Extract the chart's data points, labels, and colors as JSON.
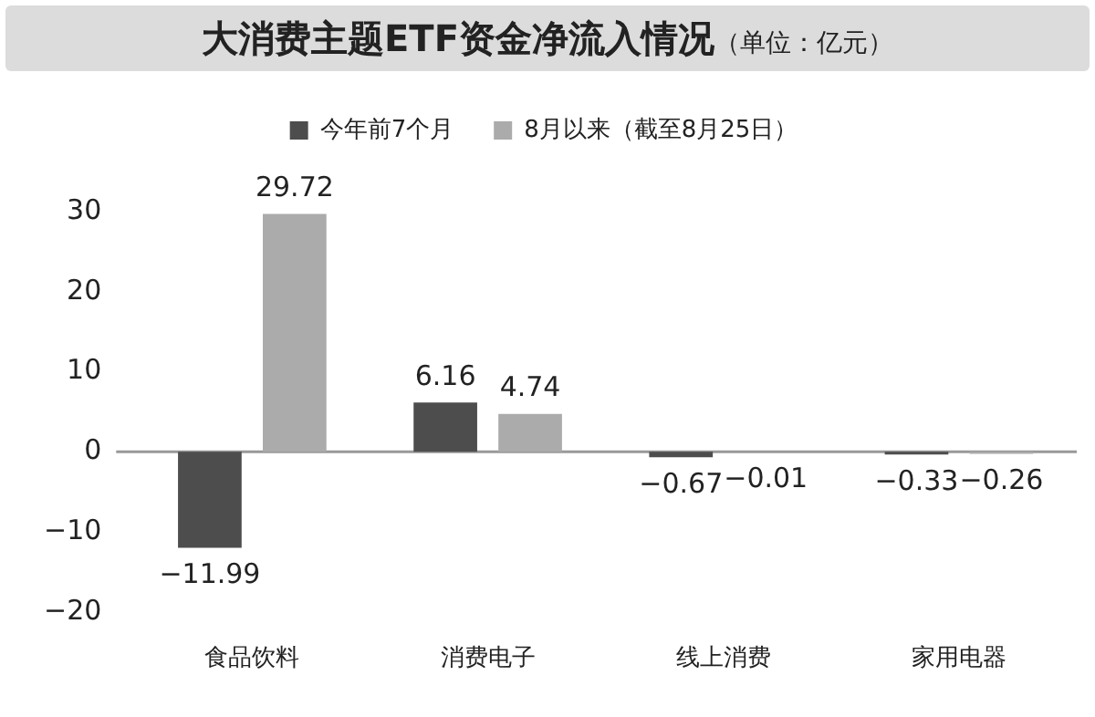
{
  "chart_data": {
    "type": "bar",
    "title": "大消费主题ETF资金净流入情况",
    "subtitle": "（单位：亿元）",
    "categories": [
      "食品饮料",
      "消费电子",
      "线上消费",
      "家用电器"
    ],
    "series": [
      {
        "name": "今年前7个月",
        "color": "#4d4d4d",
        "values": [
          -11.99,
          6.16,
          -0.67,
          -0.33
        ],
        "value_labels": [
          "−11.99",
          "6.16",
          "−0.67",
          "−0.33"
        ]
      },
      {
        "name": "8月以来（截至8月25日）",
        "color": "#ababab",
        "values": [
          29.72,
          4.74,
          -0.01,
          -0.26
        ],
        "value_labels": [
          "29.72",
          "4.74",
          "−0.01",
          "−0.26"
        ]
      }
    ],
    "ylim": [
      -20,
      30
    ],
    "yticks": [
      {
        "value": -20,
        "label": "−20"
      },
      {
        "value": -10,
        "label": "−10"
      },
      0,
      10,
      20,
      30
    ],
    "ref_lines": [
      {
        "axis": "y",
        "value": 0,
        "color": "#999999"
      }
    ],
    "grid": false,
    "legend": "top"
  }
}
